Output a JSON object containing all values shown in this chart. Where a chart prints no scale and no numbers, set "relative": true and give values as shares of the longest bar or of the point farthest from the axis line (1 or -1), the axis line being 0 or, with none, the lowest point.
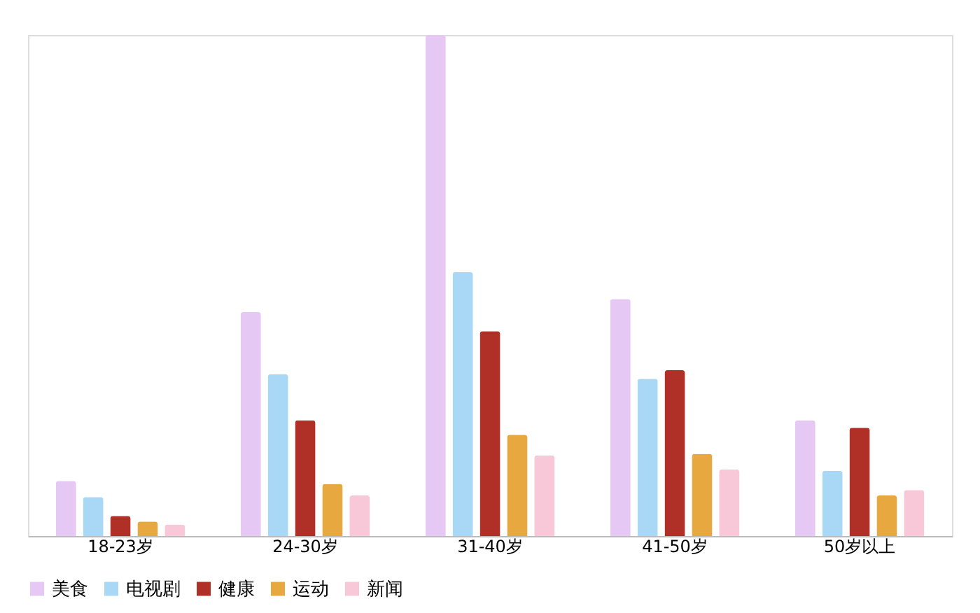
{
  "chart_data": {
    "type": "bar",
    "relative": true,
    "categories": [
      "18-23岁",
      "24-30岁",
      "31-40岁",
      "41-50岁",
      "50岁以上"
    ],
    "series": [
      {
        "name": "美食",
        "color": "#e6c8f5",
        "values": [
          0.11,
          0.447,
          1.0,
          0.473,
          0.231
        ]
      },
      {
        "name": "电视剧",
        "color": "#a8d8f5",
        "values": [
          0.078,
          0.323,
          0.527,
          0.314,
          0.13
        ]
      },
      {
        "name": "健康",
        "color": "#b03028",
        "values": [
          0.04,
          0.231,
          0.409,
          0.331,
          0.216
        ]
      },
      {
        "name": "运动",
        "color": "#e8a840",
        "values": [
          0.029,
          0.104,
          0.202,
          0.164,
          0.081
        ]
      },
      {
        "name": "新闻",
        "color": "#f8c8d8",
        "values": [
          0.023,
          0.081,
          0.161,
          0.133,
          0.092
        ]
      }
    ],
    "legend": "bottom",
    "grid": false
  }
}
